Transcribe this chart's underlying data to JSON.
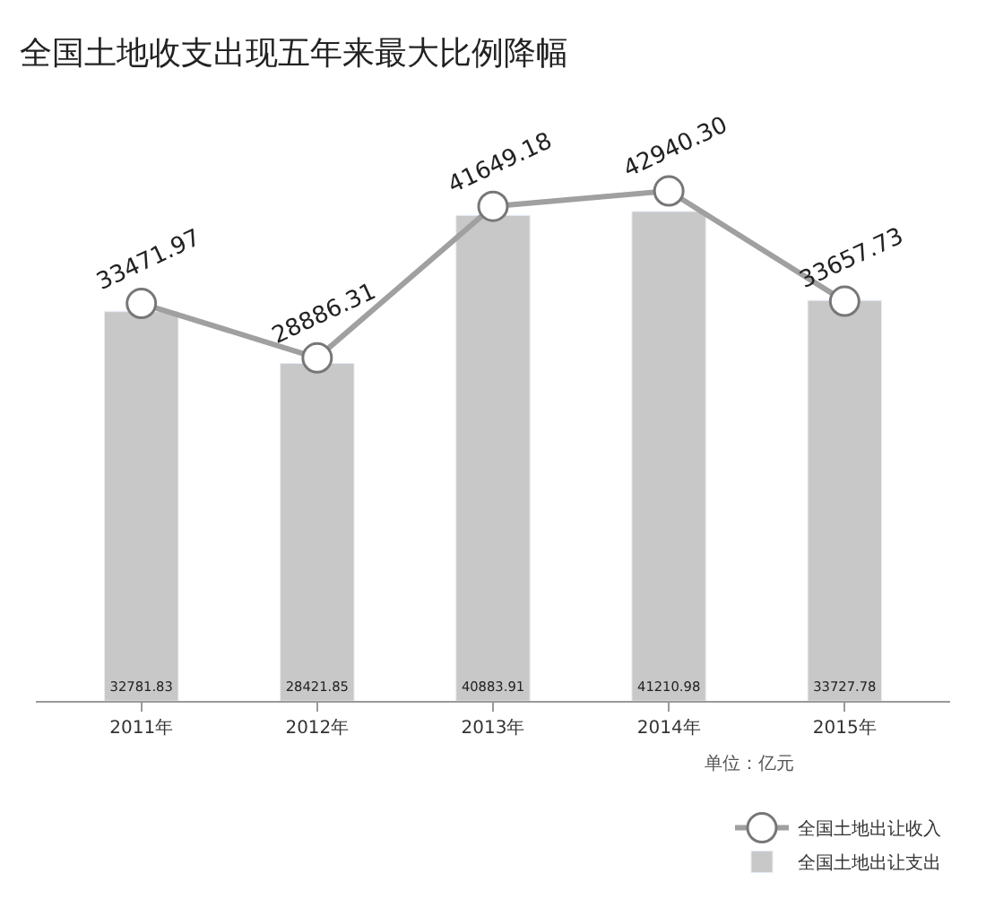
{
  "chart_data": {
    "type": "bar",
    "title": "全国土地收支出现五年来最大比例降幅",
    "categories": [
      "2011年",
      "2012年",
      "2013年",
      "2014年",
      "2015年"
    ],
    "series": [
      {
        "name": "全国土地出让收入",
        "type": "line",
        "color": "#a0a0a0",
        "marker": "circle",
        "values": [
          33471.97,
          28886.31,
          41649.18,
          42940.3,
          33657.73
        ],
        "value_labels": [
          "33471.97",
          "28886.31",
          "41649.18",
          "42940.30",
          "33657.73"
        ]
      },
      {
        "name": "全国土地出让支出",
        "color": "#c8c8c8",
        "values": [
          32781.83,
          28421.85,
          40883.91,
          41210.98,
          33727.78
        ],
        "value_labels": [
          "32781.83",
          "28421.85",
          "40883.91",
          "41210.98",
          "33727.78"
        ]
      }
    ],
    "legend": "bottom right",
    "tick_labels": "x",
    "annotations": [
      "单位：亿元"
    ]
  }
}
